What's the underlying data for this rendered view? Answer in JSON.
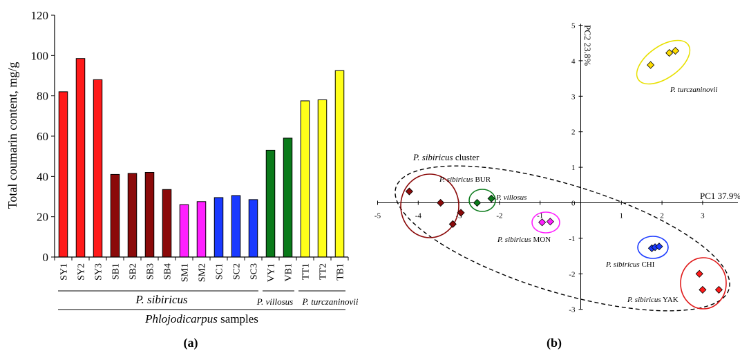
{
  "panel_a_label": "(a)",
  "panel_b_label": "(b)",
  "group_labels": {
    "sibiricus": "P. sibiricus",
    "villosus": "P. villosus",
    "turczaninovii": "P. turczaninovii",
    "genus": "Phlojodicarpus",
    "genus_suffix": " samples"
  },
  "pca_labels": {
    "cluster_italic": "P. sibiricus",
    "cluster_suffix": " cluster",
    "bur_italic": "P. sibiricus",
    "bur_suffix": " BUR",
    "vil": "P. villosus",
    "mon_italic": "P. sibiricus",
    "mon_suffix": " MON",
    "chi_italic": "P. sibiricus",
    "chi_suffix": " CHI",
    "yak_italic": "P. sibiricus",
    "yak_suffix": " YAK",
    "tur": "P. turczaninovii"
  },
  "chart_data": [
    {
      "type": "bar",
      "ylabel": "Total coumarin content, mg/g",
      "xlabel": "Phlojodicarpus samples",
      "ylim": [
        0,
        120
      ],
      "yticks": [
        0,
        20,
        40,
        60,
        80,
        100,
        120
      ],
      "categories": [
        "SY1",
        "SY2",
        "SY3",
        "SB1",
        "SB2",
        "SB3",
        "SB4",
        "SM1",
        "SM2",
        "SC1",
        "SC2",
        "SC3",
        "VY1",
        "VB1",
        "TT1",
        "TT2",
        "TB1"
      ],
      "values": [
        82,
        98.5,
        88,
        41,
        41.5,
        42,
        33.5,
        26,
        27.5,
        29.5,
        30.5,
        28.5,
        53,
        59,
        77.5,
        78,
        92.5
      ],
      "colors": [
        "#ff1a1a",
        "#ff1a1a",
        "#ff1a1a",
        "#8b0a0a",
        "#8b0a0a",
        "#8b0a0a",
        "#8b0a0a",
        "#ff20ff",
        "#ff20ff",
        "#1a3aff",
        "#1a3aff",
        "#1a3aff",
        "#0a7a1a",
        "#0a7a1a",
        "#ffff1a",
        "#ffff1a",
        "#ffff1a"
      ]
    },
    {
      "type": "scatter",
      "xlabel": "PC1 37.9%",
      "ylabel": "PC2 23.8%",
      "xlim": [
        -5,
        4
      ],
      "ylim": [
        -3,
        5
      ],
      "xticks": [
        -5,
        -4,
        -3,
        -2,
        -1,
        0,
        1,
        2,
        3
      ],
      "yticks": [
        -3,
        -2,
        -1,
        0,
        1,
        2,
        3,
        4,
        5
      ],
      "groups": [
        {
          "group": "BUR",
          "color": "#8b0a0a",
          "points": [
            [
              -4.22,
              0.32
            ],
            [
              -3.45,
              0.0
            ],
            [
              -3.15,
              -0.6
            ],
            [
              -2.95,
              -0.28
            ]
          ]
        },
        {
          "group": "VIL",
          "color": "#0a7a1a",
          "points": [
            [
              -2.55,
              0.0
            ],
            [
              -2.2,
              0.12
            ]
          ]
        },
        {
          "group": "MON",
          "color": "#ff20ff",
          "points": [
            [
              -0.95,
              -0.55
            ],
            [
              -0.75,
              -0.53
            ]
          ]
        },
        {
          "group": "CHI",
          "color": "#1a3aff",
          "points": [
            [
              1.75,
              -1.28
            ],
            [
              1.83,
              -1.25
            ],
            [
              1.93,
              -1.23
            ]
          ]
        },
        {
          "group": "YAK",
          "color": "#ff1a1a",
          "points": [
            [
              2.92,
              -2.0
            ],
            [
              3.0,
              -2.45
            ],
            [
              3.4,
              -2.45
            ]
          ]
        },
        {
          "group": "TUR",
          "color": "#ffdd00",
          "points": [
            [
              1.72,
              3.88
            ],
            [
              2.18,
              4.22
            ],
            [
              2.33,
              4.28
            ]
          ]
        }
      ]
    }
  ]
}
